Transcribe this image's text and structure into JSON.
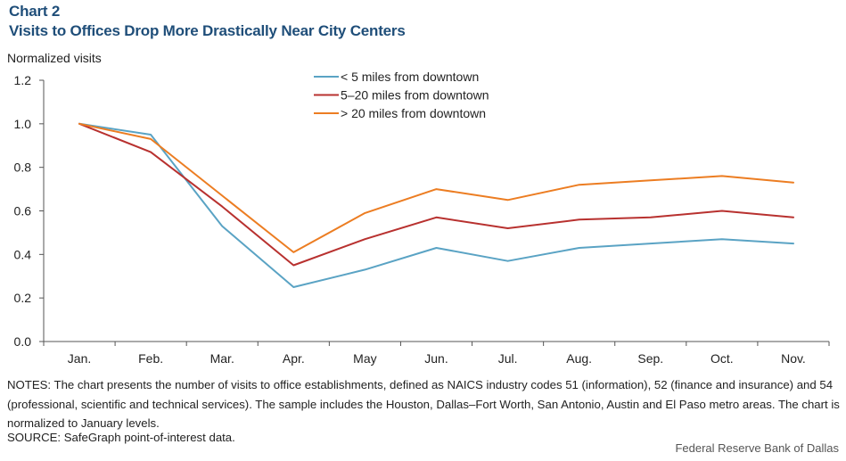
{
  "header": {
    "chart_label": "Chart 2",
    "title": "Visits to Offices Drop More Drastically Near City Centers"
  },
  "notes": "NOTES: The chart presents the number of visits to office establishments, defined as NAICS industry codes 51 (information), 52 (finance and insurance) and 54 (professional, scientific and technical services). The sample includes the Houston, Dallas–Fort Worth, San Antonio, Austin and El Paso metro areas. The chart is normalized to January levels.",
  "source": "SOURCE: SafeGraph point-of-interest data.",
  "credit": "Federal Reserve Bank of Dallas",
  "chart_data": {
    "type": "line",
    "title": "Visits to Offices Drop More Drastically Near City Centers",
    "ylabel": "Normalized visits",
    "xlabel": "",
    "categories": [
      "Jan.",
      "Feb.",
      "Mar.",
      "Apr.",
      "May",
      "Jun.",
      "Jul.",
      "Aug.",
      "Sep.",
      "Oct.",
      "Nov."
    ],
    "ylim": [
      0,
      1.2
    ],
    "yticks": [
      "0.0",
      "0.2",
      "0.4",
      "0.6",
      "0.8",
      "1.0",
      "1.2"
    ],
    "grid": false,
    "legend_position": "top-center",
    "series": [
      {
        "name": "< 5 miles from downtown",
        "color": "#5aa3c4",
        "values": [
          1.0,
          0.95,
          0.53,
          0.25,
          0.33,
          0.43,
          0.37,
          0.43,
          0.45,
          0.47,
          0.45
        ]
      },
      {
        "name": "5–20 miles from downtown",
        "color": "#b8312f",
        "values": [
          1.0,
          0.87,
          0.62,
          0.35,
          0.47,
          0.57,
          0.52,
          0.56,
          0.57,
          0.6,
          0.57
        ]
      },
      {
        "name": "> 20 miles from downtown",
        "color": "#ec7d22",
        "values": [
          1.0,
          0.93,
          0.67,
          0.41,
          0.59,
          0.7,
          0.65,
          0.72,
          0.74,
          0.76,
          0.73
        ]
      }
    ]
  }
}
